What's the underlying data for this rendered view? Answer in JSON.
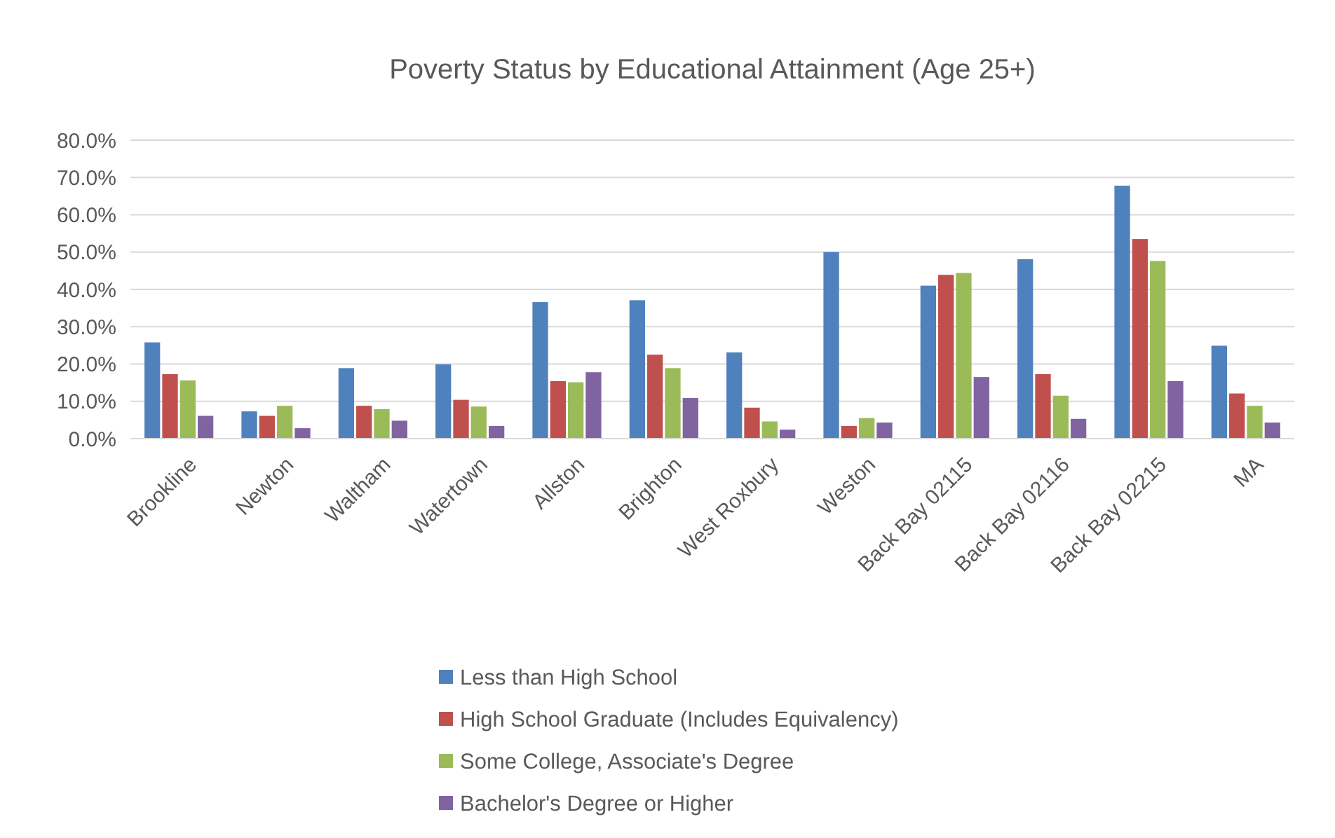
{
  "chart_data": {
    "type": "bar",
    "title": "Poverty Status by Educational Attainment (Age 25+)",
    "categories": [
      "Brookline",
      "Newton",
      "Waltham",
      "Watertown",
      "Allston",
      "Brighton",
      "West Roxbury",
      "Weston",
      "Back Bay 02115",
      "Back Bay 02116",
      "Back Bay 02215",
      "MA"
    ],
    "series": [
      {
        "name": "Less than High School",
        "color": "#4f81bd",
        "values": [
          25.8,
          7.3,
          18.9,
          19.9,
          36.6,
          37.1,
          23.1,
          50.0,
          41.0,
          48.1,
          67.8,
          24.9
        ]
      },
      {
        "name": "High School Graduate (Includes Equivalency)",
        "color": "#c0504d",
        "values": [
          17.3,
          6.1,
          8.8,
          10.4,
          15.4,
          22.5,
          8.3,
          3.4,
          43.9,
          17.3,
          53.5,
          12.1
        ]
      },
      {
        "name": "Some College, Associate's Degree",
        "color": "#9bbb59",
        "values": [
          15.6,
          8.8,
          7.9,
          8.6,
          15.1,
          18.9,
          4.6,
          5.5,
          44.4,
          11.5,
          47.6,
          8.8
        ]
      },
      {
        "name": "Bachelor's Degree or Higher",
        "color": "#8064a2",
        "values": [
          6.1,
          2.8,
          4.8,
          3.4,
          17.8,
          10.9,
          2.4,
          4.3,
          16.5,
          5.3,
          15.4,
          4.3
        ]
      }
    ],
    "ylim": [
      0,
      80
    ],
    "yticks": [
      {
        "value": 0,
        "label": "0.0%"
      },
      {
        "value": 10,
        "label": "10.0%"
      },
      {
        "value": 20,
        "label": "20.0%"
      },
      {
        "value": 30,
        "label": "30.0%"
      },
      {
        "value": 40,
        "label": "40.0%"
      },
      {
        "value": 50,
        "label": "50.0%"
      },
      {
        "value": 60,
        "label": "60.0%"
      },
      {
        "value": 70,
        "label": "70.0%"
      },
      {
        "value": 80,
        "label": "80.0%"
      }
    ],
    "grid": "y",
    "legend": "bottom"
  }
}
